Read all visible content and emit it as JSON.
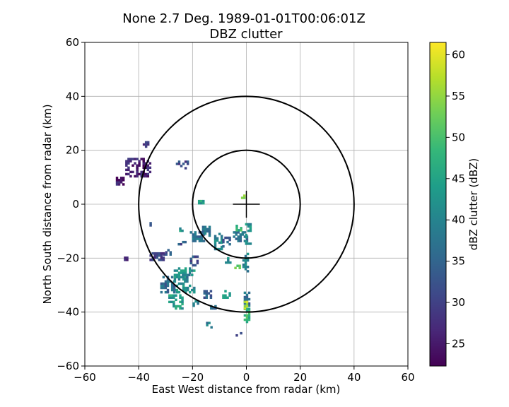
{
  "chart_data": {
    "type": "heatmap",
    "title_line1": "None 2.7 Deg. 1989-01-01T00:06:01Z",
    "title_line2": "DBZ clutter",
    "xlabel": "East West distance from radar (km)",
    "ylabel": "North South distance from radar (km)",
    "xlim": [
      -60,
      60
    ],
    "ylim": [
      -60,
      60
    ],
    "x_ticks": [
      -60,
      -40,
      -20,
      0,
      20,
      40,
      60
    ],
    "y_ticks": [
      -60,
      -40,
      -20,
      0,
      20,
      40,
      60
    ],
    "grid": true,
    "range_rings_km": [
      20,
      40
    ],
    "center_cross_km": 5,
    "colorbar": {
      "label": "dBZ clutter (dBZ)",
      "vmin": 22.3,
      "vmax": 61.5,
      "ticks": [
        25,
        30,
        35,
        40,
        45,
        50,
        55,
        60
      ],
      "colormap": "viridis"
    },
    "clutter_regions": [
      {
        "x": -45,
        "y": 10,
        "w": 9,
        "h": 7,
        "dbz": 26
      },
      {
        "x": -48.5,
        "y": 7,
        "w": 3,
        "h": 3,
        "dbz": 25
      },
      {
        "x": -38.5,
        "y": 21,
        "w": 2,
        "h": 2,
        "dbz": 27
      },
      {
        "x": -27,
        "y": 13,
        "w": 6,
        "h": 3,
        "dbz": 30
      },
      {
        "x": -21,
        "y": -14,
        "w": 5,
        "h": 4,
        "dbz": 36
      },
      {
        "x": -25.5,
        "y": -16,
        "w": 3,
        "h": 2,
        "dbz": 33
      },
      {
        "x": -16.5,
        "y": -12,
        "w": 3,
        "h": 4,
        "dbz": 38
      },
      {
        "x": -12,
        "y": -17,
        "w": 3,
        "h": 6,
        "dbz": 40
      },
      {
        "x": -9,
        "y": -16,
        "w": 3,
        "h": 4,
        "dbz": 34
      },
      {
        "x": -5,
        "y": -14,
        "w": 5,
        "h": 4,
        "dbz": 36
      },
      {
        "x": -0.5,
        "y": -15,
        "w": 2,
        "h": 8,
        "dbz": 42
      },
      {
        "x": -4,
        "y": -10,
        "w": 2,
        "h": 2,
        "dbz": 48
      },
      {
        "x": -2,
        "y": 2,
        "w": 2,
        "h": 1,
        "dbz": 52
      },
      {
        "x": -18,
        "y": 0,
        "w": 2,
        "h": 1,
        "dbz": 44
      },
      {
        "x": -8,
        "y": -22,
        "w": 2,
        "h": 2,
        "dbz": 40
      },
      {
        "x": -1.5,
        "y": -26,
        "w": 2,
        "h": 8,
        "dbz": 40
      },
      {
        "x": -4.5,
        "y": -24,
        "w": 2,
        "h": 2,
        "dbz": 50
      },
      {
        "x": -27,
        "y": -33,
        "w": 8,
        "h": 9,
        "dbz": 42
      },
      {
        "x": -32,
        "y": -33,
        "w": 5,
        "h": 6,
        "dbz": 36
      },
      {
        "x": -29,
        "y": -39,
        "w": 5,
        "h": 5,
        "dbz": 44
      },
      {
        "x": -24,
        "y": -29,
        "w": 3,
        "h": 3,
        "dbz": 38
      },
      {
        "x": -21,
        "y": -23,
        "w": 3,
        "h": 4,
        "dbz": 32
      },
      {
        "x": -36,
        "y": -21,
        "w": 5,
        "h": 3,
        "dbz": 30
      },
      {
        "x": -31,
        "y": -19,
        "w": 3,
        "h": 2,
        "dbz": 32
      },
      {
        "x": -45.5,
        "y": -21,
        "w": 1,
        "h": 1,
        "dbz": 28
      },
      {
        "x": -16,
        "y": -35,
        "w": 3,
        "h": 3,
        "dbz": 34
      },
      {
        "x": -20,
        "y": -38,
        "w": 2,
        "h": 2,
        "dbz": 40
      },
      {
        "x": -9,
        "y": -35,
        "w": 3,
        "h": 3,
        "dbz": 45
      },
      {
        "x": -13.5,
        "y": -39,
        "w": 2,
        "h": 1,
        "dbz": 36
      },
      {
        "x": -1,
        "y": -38,
        "w": 2,
        "h": 5,
        "dbz": 36
      },
      {
        "x": -1,
        "y": -44,
        "w": 2,
        "h": 5,
        "dbz": 48
      },
      {
        "x": -1,
        "y": -39,
        "w": 1,
        "h": 3,
        "dbz": 56
      },
      {
        "x": -15,
        "y": -46,
        "w": 2,
        "h": 3,
        "dbz": 38
      },
      {
        "x": -4,
        "y": -49,
        "w": 2,
        "h": 1,
        "dbz": 34
      },
      {
        "x": -36,
        "y": -9,
        "w": 1,
        "h": 2,
        "dbz": 30
      },
      {
        "x": -25,
        "y": -11,
        "w": 1,
        "h": 2,
        "dbz": 42
      }
    ]
  }
}
